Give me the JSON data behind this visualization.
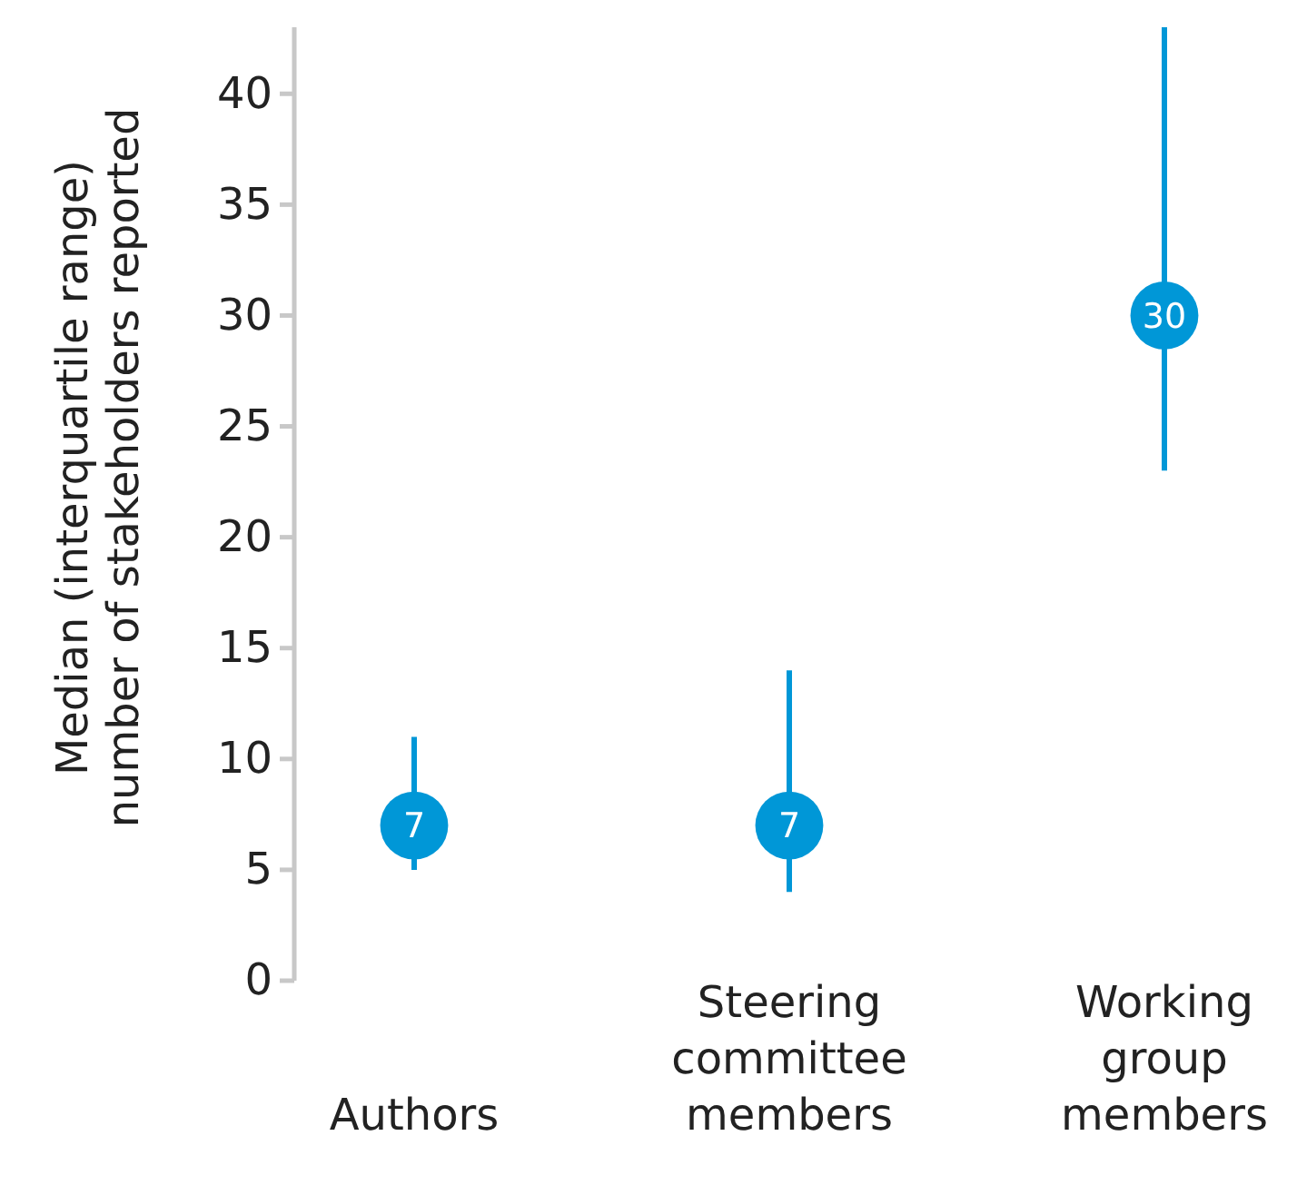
{
  "chart_data": {
    "type": "scatter",
    "ylabel": "Median (interquartile range) number of stakeholders reported",
    "categories": [
      "Authors",
      "Steering committee members",
      "Working group members"
    ],
    "values": [
      7,
      7,
      30
    ],
    "errors": [
      [
        5,
        11
      ],
      [
        4,
        14
      ],
      [
        23,
        43
      ]
    ],
    "color": "#0097d7",
    "marker": "circle",
    "data_labels": true,
    "grid": false,
    "ylim": [
      0,
      43
    ],
    "yticks": [
      0,
      5,
      10,
      15,
      20,
      25,
      30,
      35,
      40
    ]
  }
}
